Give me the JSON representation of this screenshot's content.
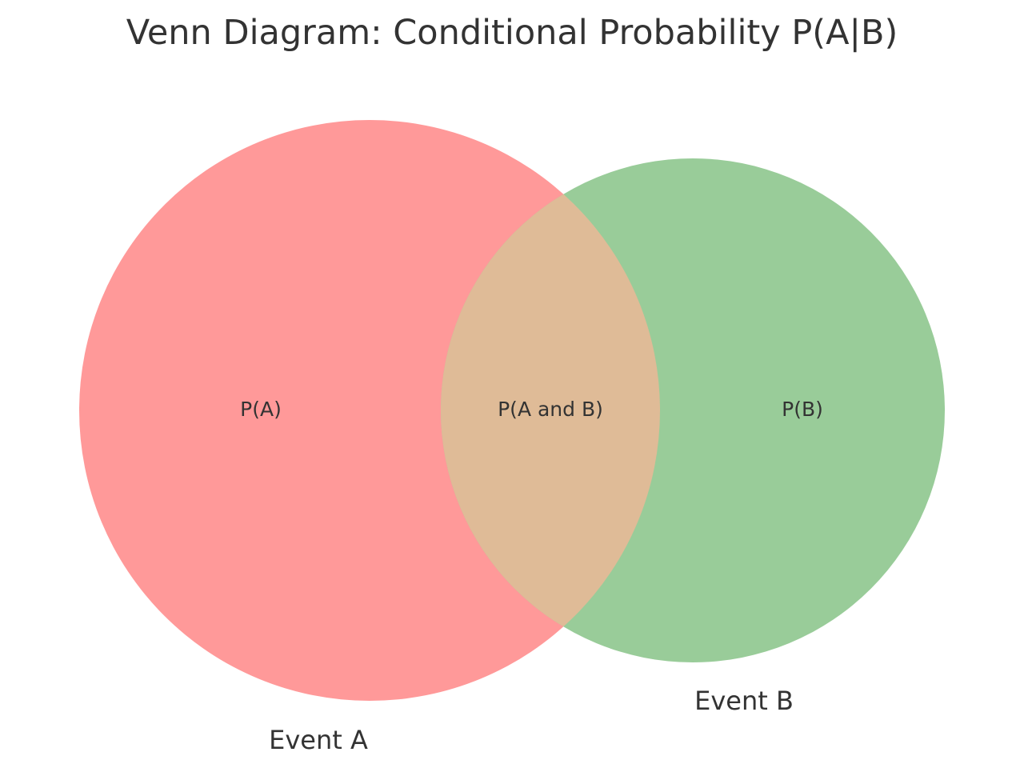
{
  "title": "Venn Diagram: Conditional Probability P(A|B)",
  "sets": [
    {
      "name": "Event A",
      "region_label": "P(A)",
      "color": "#ff9999"
    },
    {
      "name": "Event B",
      "region_label": "P(B)",
      "color": "#99cc99"
    }
  ],
  "intersection": {
    "label": "P(A and B)",
    "color": "#dfbb97"
  }
}
